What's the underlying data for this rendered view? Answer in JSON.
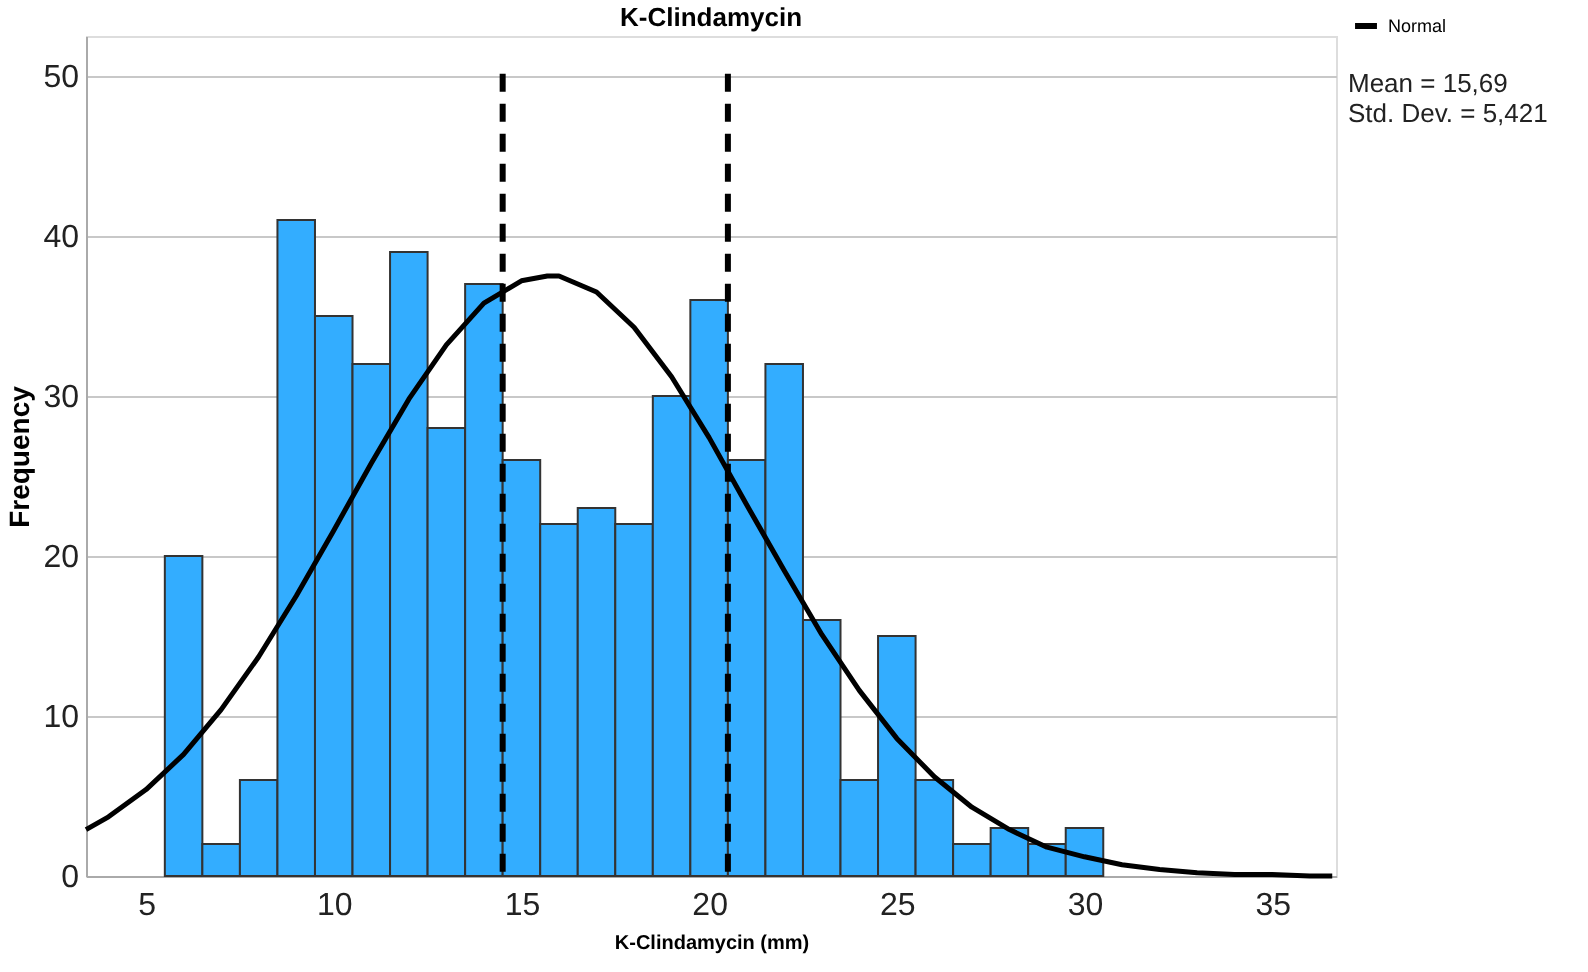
{
  "chart_data": {
    "type": "histogram",
    "title": "K-Clindamycin",
    "xlabel": "K-Clindamycin (mm)",
    "ylabel": "Frequency",
    "bins": [
      5.5,
      6.5,
      7.5,
      8.5,
      9.5,
      10.5,
      11.5,
      12.5,
      13.5,
      14.5,
      15.5,
      16.5,
      17.5,
      18.5,
      19.5,
      20.5,
      21.5,
      22.5,
      23.5,
      24.5,
      25.5,
      26.5,
      27.5,
      28.5,
      29.5,
      30.5
    ],
    "values": [
      20,
      2,
      6,
      41,
      35,
      32,
      39,
      28,
      37,
      26,
      22,
      23,
      22,
      30,
      36,
      26,
      32,
      16,
      6,
      15,
      6,
      2,
      3,
      2,
      3
    ],
    "color": "#33adff",
    "series": [
      {
        "name": "Normal",
        "type": "line",
        "color": "#000000",
        "x": [
          3.4,
          4,
          5,
          6,
          7,
          8,
          9,
          10,
          11,
          12,
          13,
          14,
          15,
          15.69,
          16,
          17,
          18,
          19,
          20,
          21,
          22,
          23,
          24,
          25,
          26,
          27,
          28,
          29,
          30,
          31,
          32,
          33,
          34,
          35,
          36,
          36.6
        ],
        "values": [
          2.9,
          3.7,
          5.4,
          7.6,
          10.4,
          13.7,
          17.5,
          21.6,
          25.8,
          29.8,
          33.2,
          35.8,
          37.2,
          37.5,
          37.5,
          36.5,
          34.3,
          31.2,
          27.4,
          23.2,
          19.1,
          15.1,
          11.6,
          8.6,
          6.2,
          4.3,
          2.9,
          1.8,
          1.2,
          0.7,
          0.4,
          0.2,
          0.1,
          0.1,
          0.0,
          0.0
        ]
      }
    ],
    "ref_lines": [
      {
        "axis": "x",
        "value": 14.5,
        "color": "#000000",
        "line_style": "dashed"
      },
      {
        "axis": "x",
        "value": 20.5,
        "color": "#000000",
        "line_style": "dashed"
      }
    ],
    "annotations": [
      "Mean = 15,69",
      "Std. Dev. = 5,421"
    ],
    "xlim": [
      3.4,
      36.7
    ],
    "xticks": [
      5,
      10,
      15,
      20,
      25,
      30,
      35
    ],
    "ylim": [
      0,
      52.5
    ],
    "yticks": [
      0,
      10,
      20,
      30,
      40,
      50
    ],
    "grid": "y",
    "legend": "top right"
  }
}
